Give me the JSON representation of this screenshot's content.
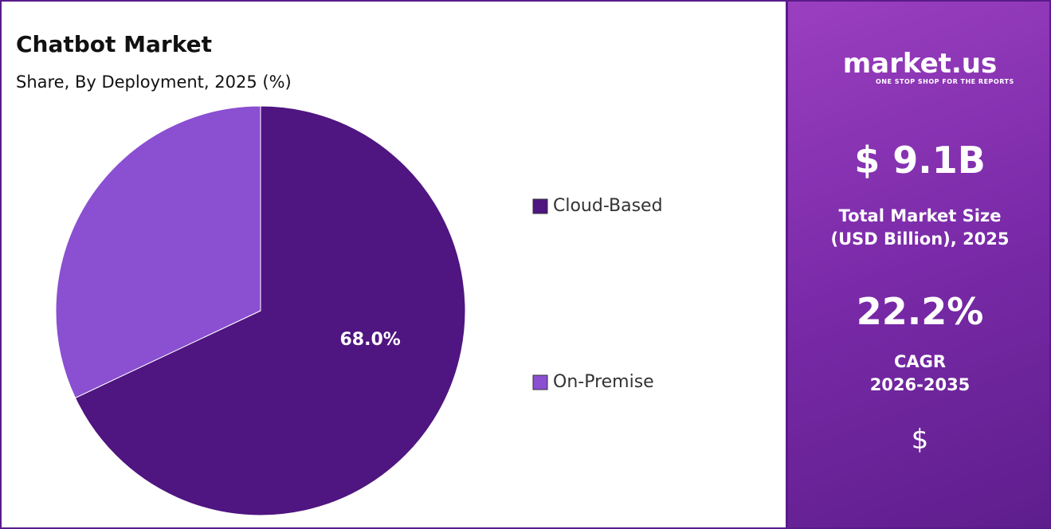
{
  "chart_data": {
    "type": "pie",
    "title": "Chatbot Market",
    "subtitle": "Share, By Deployment, 2025 (%)",
    "categories": [
      "Cloud-Based",
      "On-Premise"
    ],
    "values": [
      68.0,
      32.0
    ],
    "value_labels": [
      "68.0%",
      null
    ],
    "colors": [
      "#4f1580",
      "#8b4fd1"
    ],
    "start_angle": 0,
    "direction": "clockwise",
    "legend": "right"
  },
  "panel": {
    "brand": "market.us",
    "tagline": "ONE STOP SHOP FOR THE REPORTS",
    "market_size": "$ 9.1B",
    "market_size_label": [
      "Total Market Size",
      "(USD Billion), 2025"
    ],
    "cagr": "22.2%",
    "cagr_label": [
      "CAGR",
      "2026-2035"
    ],
    "icon": "$"
  }
}
